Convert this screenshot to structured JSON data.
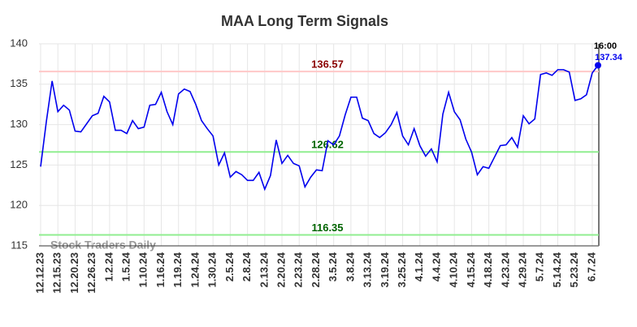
{
  "chart_data": {
    "type": "line",
    "title": "MAA Long Term Signals",
    "watermark": "Stock Traders Daily",
    "categories": [
      "12.12.23",
      null,
      null,
      "12.15.23",
      null,
      null,
      "12.20.23",
      null,
      null,
      "12.26.23",
      null,
      null,
      "1.2.24",
      null,
      null,
      "1.5.24",
      null,
      null,
      "1.10.24",
      null,
      null,
      "1.16.24",
      null,
      null,
      "1.19.24",
      null,
      null,
      "1.24.24",
      null,
      null,
      "1.30.24",
      null,
      null,
      "2.5.24",
      null,
      null,
      "2.8.24",
      null,
      null,
      "2.13.24",
      null,
      null,
      "2.20.24",
      null,
      null,
      "2.23.24",
      null,
      null,
      "2.28.24",
      null,
      null,
      "3.5.24",
      null,
      null,
      "3.8.24",
      null,
      null,
      "3.13.24",
      null,
      null,
      "3.19.24",
      null,
      null,
      "3.25.24",
      null,
      null,
      "4.1.24",
      null,
      null,
      "4.4.24",
      null,
      null,
      "4.10.24",
      null,
      null,
      "4.15.24",
      null,
      null,
      "4.18.24",
      null,
      null,
      "4.23.24",
      null,
      null,
      "4.29.24",
      null,
      null,
      "5.7.24",
      null,
      null,
      "5.14.24",
      null,
      null,
      "5.23.24",
      null,
      null,
      "6.7.24",
      null
    ],
    "series": [
      {
        "color": "#0000ee",
        "values": [
          124.8,
          130.4,
          135.4,
          131.6,
          132.4,
          131.8,
          129.2,
          129.1,
          130.1,
          131.1,
          131.4,
          133.5,
          132.8,
          129.3,
          129.3,
          128.9,
          130.5,
          129.5,
          129.7,
          132.4,
          132.5,
          134.0,
          131.6,
          130.0,
          133.8,
          134.4,
          134.1,
          132.5,
          130.5,
          129.5,
          128.6,
          125.0,
          126.5,
          123.5,
          124.2,
          123.8,
          123.1,
          123.1,
          124.1,
          122.0,
          123.7,
          128.1,
          125.2,
          126.2,
          125.2,
          124.9,
          122.3,
          123.5,
          124.4,
          124.3,
          128.0,
          127.5,
          128.6,
          131.2,
          133.4,
          133.4,
          130.8,
          130.5,
          128.9,
          128.4,
          129.0,
          130.0,
          131.5,
          128.6,
          127.5,
          129.5,
          127.4,
          126.1,
          127.0,
          125.4,
          131.3,
          134.0,
          131.6,
          130.6,
          128.2,
          126.6,
          123.8,
          124.8,
          124.6,
          126.0,
          127.4,
          127.5,
          128.4,
          127.2,
          131.1,
          130.1,
          130.7,
          136.2,
          136.4,
          136.1,
          136.8,
          136.8,
          136.5,
          133.0,
          133.2,
          133.7,
          136.4,
          137.34
        ]
      }
    ],
    "last_time": "16:00",
    "hlines": [
      {
        "value": 136.57,
        "color": "#ffc8c8",
        "label_color": "#8b0000"
      },
      {
        "value": 126.62,
        "color": "#90ee90",
        "label_color": "#006400"
      },
      {
        "value": 116.35,
        "color": "#90ee90",
        "label_color": "#006400"
      }
    ],
    "ylim": [
      115,
      140
    ],
    "yticks": [
      115,
      120,
      125,
      130,
      135,
      140
    ],
    "grid": true
  }
}
